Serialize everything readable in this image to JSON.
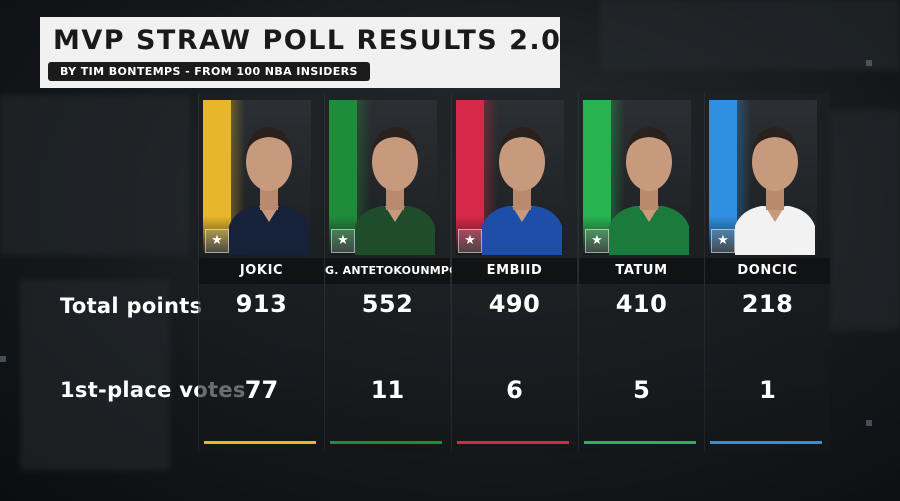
{
  "header": {
    "title": "MVP STRAW POLL RESULTS 2.0",
    "subtitle": "BY TIM BONTEMPS - FROM 100 NBA INSIDERS"
  },
  "rows": {
    "total_points_label": "Total points",
    "first_place_label": "1st-place votes"
  },
  "players": [
    {
      "name": "JOKIC",
      "points": "913",
      "first_place_votes": "77",
      "color": "#e8b62a",
      "jersey": "#16213a",
      "logo_icon": "nuggets-logo-icon"
    },
    {
      "name": "G. ANTETOKOUNMPO",
      "points": "552",
      "first_place_votes": "11",
      "color": "#1f8c3a",
      "jersey": "#1f4d2b",
      "logo_icon": "bucks-logo-icon"
    },
    {
      "name": "EMBIID",
      "points": "490",
      "first_place_votes": "6",
      "color": "#d62848",
      "jersey": "#1d4ea8",
      "logo_icon": "sixers-logo-icon"
    },
    {
      "name": "TATUM",
      "points": "410",
      "first_place_votes": "5",
      "color": "#27b34f",
      "jersey": "#1a7b3c",
      "logo_icon": "celtics-logo-icon"
    },
    {
      "name": "DONCIC",
      "points": "218",
      "first_place_votes": "1",
      "color": "#2f8fe0",
      "jersey": "#f2f2f2",
      "logo_icon": "mavericks-logo-icon"
    }
  ]
}
